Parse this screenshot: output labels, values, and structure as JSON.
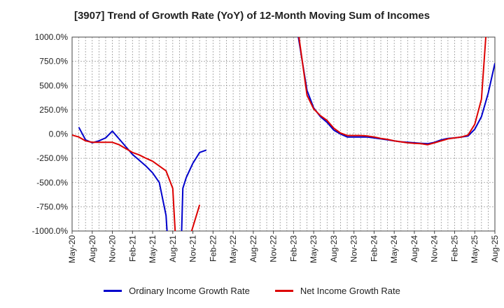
{
  "chart_data": {
    "type": "line",
    "title": "[3907]  Trend of Growth Rate (YoY) of 12-Month Moving Sum of Incomes",
    "x_ticks": [
      "May-20",
      "Aug-20",
      "Nov-20",
      "Feb-21",
      "May-21",
      "Aug-21",
      "Nov-21",
      "Feb-22",
      "May-22",
      "Aug-22",
      "Nov-22",
      "Feb-23",
      "May-23",
      "Aug-23",
      "Nov-23",
      "Feb-24",
      "May-24",
      "Aug-24",
      "Nov-24",
      "Feb-25",
      "May-25",
      "Aug-25"
    ],
    "y_ticks": [
      "1000.0%",
      "750.0%",
      "500.0%",
      "250.0%",
      "0.0%",
      "-250.0%",
      "-500.0%",
      "-750.0%",
      "-1000.0%"
    ],
    "ylim": [
      -1000,
      1000
    ],
    "grid": true,
    "legend_position": "bottom",
    "series": [
      {
        "name": "Ordinary Income Growth Rate",
        "color": "#0000cc",
        "points": [
          [
            1,
            70
          ],
          [
            2,
            -60
          ],
          [
            3,
            -90
          ],
          [
            4,
            -70
          ],
          [
            5,
            -40
          ],
          [
            6,
            30
          ],
          [
            7,
            -50
          ],
          [
            8,
            -130
          ],
          [
            9,
            -210
          ],
          [
            10,
            -270
          ],
          [
            11,
            -330
          ],
          [
            12,
            -400
          ],
          [
            13,
            -500
          ],
          [
            14,
            -840
          ],
          [
            14.2,
            -1050
          ],
          null,
          [
            16.3,
            -1050
          ],
          [
            16.5,
            -560
          ],
          [
            17,
            -450
          ],
          [
            18,
            -300
          ],
          [
            19,
            -190
          ],
          [
            20,
            -165
          ],
          null,
          [
            33.6,
            1050
          ],
          [
            35,
            450
          ],
          [
            36,
            270
          ],
          [
            37,
            180
          ],
          [
            38,
            120
          ],
          [
            39,
            40
          ],
          [
            40,
            0
          ],
          [
            41,
            -30
          ],
          [
            42,
            -30
          ],
          [
            43,
            -30
          ],
          [
            44,
            -30
          ],
          [
            45,
            -40
          ],
          [
            46,
            -50
          ],
          [
            47,
            -60
          ],
          [
            48,
            -70
          ],
          [
            49,
            -80
          ],
          [
            50,
            -85
          ],
          [
            51,
            -90
          ],
          [
            52,
            -95
          ],
          [
            53,
            -100
          ],
          [
            54,
            -85
          ],
          [
            55,
            -60
          ],
          [
            56,
            -45
          ],
          [
            57,
            -40
          ],
          [
            58,
            -30
          ],
          [
            59,
            -20
          ],
          [
            60,
            50
          ],
          [
            61,
            180
          ],
          [
            62,
            420
          ],
          [
            63,
            730
          ]
        ]
      },
      {
        "name": "Net Income Growth Rate",
        "color": "#dd0000",
        "points": [
          [
            0,
            -10
          ],
          [
            1,
            -30
          ],
          [
            2,
            -70
          ],
          [
            3,
            -85
          ],
          [
            4,
            -85
          ],
          [
            5,
            -85
          ],
          [
            6,
            -85
          ],
          [
            7,
            -110
          ],
          [
            8,
            -150
          ],
          [
            9,
            -190
          ],
          [
            10,
            -215
          ],
          [
            11,
            -250
          ],
          [
            12,
            -280
          ],
          [
            13,
            -330
          ],
          [
            14,
            -380
          ],
          [
            15,
            -560
          ],
          [
            15.4,
            -1050
          ],
          null,
          [
            17.6,
            -1050
          ],
          [
            19,
            -730
          ],
          null,
          [
            33.7,
            1050
          ],
          [
            35,
            400
          ],
          [
            36,
            260
          ],
          [
            37,
            190
          ],
          [
            38,
            140
          ],
          [
            39,
            60
          ],
          [
            40,
            10
          ],
          [
            41,
            -15
          ],
          [
            42,
            -15
          ],
          [
            43,
            -15
          ],
          [
            44,
            -20
          ],
          [
            45,
            -30
          ],
          [
            46,
            -45
          ],
          [
            47,
            -55
          ],
          [
            48,
            -70
          ],
          [
            49,
            -80
          ],
          [
            50,
            -90
          ],
          [
            51,
            -95
          ],
          [
            52,
            -100
          ],
          [
            53,
            -110
          ],
          [
            54,
            -90
          ],
          [
            55,
            -70
          ],
          [
            56,
            -50
          ],
          [
            57,
            -40
          ],
          [
            58,
            -30
          ],
          [
            59,
            -10
          ],
          [
            60,
            100
          ],
          [
            61,
            360
          ],
          [
            61.7,
            1050
          ]
        ]
      }
    ]
  }
}
